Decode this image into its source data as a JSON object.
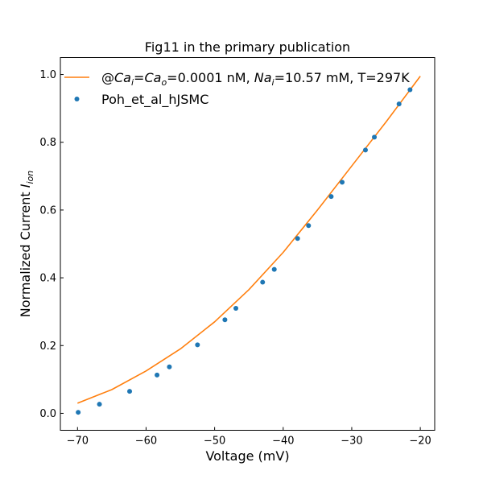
{
  "chart_data": {
    "type": "scatter",
    "title": "Fig11 in the primary publication",
    "xlabel": "Voltage (mV)",
    "ylabel_main": "Normalized Current ",
    "ylabel_symbol": "I",
    "ylabel_subscript": "ion",
    "xlim": [
      -72.5,
      -17.9
    ],
    "ylim": [
      -0.05,
      1.05
    ],
    "xticks": [
      -70,
      -60,
      -50,
      -40,
      -30,
      -20
    ],
    "yticks": [
      0.0,
      0.2,
      0.4,
      0.6,
      0.8,
      1.0
    ],
    "xtick_labels": [
      "−70",
      "−60",
      "−50",
      "−40",
      "−30",
      "−20"
    ],
    "ytick_labels": [
      "0.0",
      "0.2",
      "0.4",
      "0.6",
      "0.8",
      "1.0"
    ],
    "grid": false,
    "legend_position": "top-left",
    "series": [
      {
        "kind": "line",
        "color": "#ff7f0e",
        "legend": {
          "prefix": "@",
          "ca_i_symbol": "Ca",
          "ca_i_sub": "i",
          "equals": "=",
          "ca_o_symbol": "Ca",
          "ca_o_sub": "o",
          "ca_value": "=0.0001 nM, ",
          "na_symbol": "Na",
          "na_sub": "i",
          "rest": "=10.57 mM, T=297K"
        },
        "x": [
          -70,
          -65,
          -60,
          -55,
          -50,
          -45,
          -40,
          -35,
          -30,
          -25,
          -20
        ],
        "y": [
          0.03,
          0.07,
          0.125,
          0.19,
          0.27,
          0.365,
          0.475,
          0.6,
          0.73,
          0.86,
          0.995
        ]
      },
      {
        "kind": "scatter",
        "color": "#1f77b4",
        "name": "Poh_et_al_hJSMC",
        "x": [
          -69.9,
          -66.8,
          -62.4,
          -58.4,
          -56.6,
          -52.5,
          -48.5,
          -46.9,
          -43.0,
          -41.3,
          -37.9,
          -36.3,
          -33.0,
          -31.4,
          -28.0,
          -26.7,
          -23.1,
          -21.5
        ],
        "y": [
          0.003,
          0.027,
          0.065,
          0.113,
          0.137,
          0.202,
          0.276,
          0.31,
          0.387,
          0.425,
          0.516,
          0.554,
          0.64,
          0.682,
          0.777,
          0.815,
          0.913,
          0.955
        ]
      }
    ]
  }
}
